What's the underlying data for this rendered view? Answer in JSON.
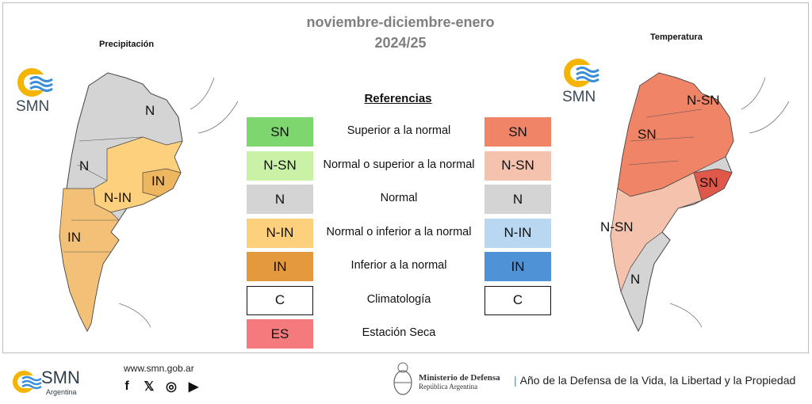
{
  "header": {
    "title_line1": "noviembre-diciembre-enero",
    "title_line2": "2024/25"
  },
  "maps": {
    "left_label": "Precipitación",
    "right_label": "Temperatura",
    "left_regions": [
      {
        "label": "N"
      },
      {
        "label": "N"
      },
      {
        "label": "N-IN"
      },
      {
        "label": "IN"
      },
      {
        "label": "IN"
      }
    ],
    "right_regions": [
      {
        "label": "N-SN"
      },
      {
        "label": "SN"
      },
      {
        "label": "SN"
      },
      {
        "label": "N-SN"
      },
      {
        "label": "N"
      }
    ]
  },
  "logo_text": "SMN",
  "legend": {
    "heading": "Referencias",
    "rows": [
      {
        "left_code": "SN",
        "left_color": "#7ed66e",
        "desc": "Superior a la normal",
        "right_code": "SN",
        "right_color": "#ef8467"
      },
      {
        "left_code": "N-SN",
        "left_color": "#c9f2a6",
        "desc": "Normal o superior a la normal",
        "right_code": "N-SN",
        "right_color": "#f5c2ae"
      },
      {
        "left_code": "N",
        "left_color": "#d4d4d4",
        "desc": "Normal",
        "right_code": "N",
        "right_color": "#d4d4d4"
      },
      {
        "left_code": "N-IN",
        "left_color": "#fdd07e",
        "desc": "Normal o inferior a la normal",
        "right_code": "N-IN",
        "right_color": "#b9d7f0"
      },
      {
        "left_code": "IN",
        "left_color": "#e49a3c",
        "desc": "Inferior a la normal",
        "right_code": "IN",
        "right_color": "#4f93d6"
      },
      {
        "left_code": "C",
        "left_color": "#ffffff",
        "desc": "Climatología",
        "right_code": "C",
        "right_color": "#ffffff"
      },
      {
        "left_code": "ES",
        "left_color": "#f57a7e",
        "desc": "Estación Seca",
        "right_code": "",
        "right_color": ""
      }
    ]
  },
  "footer": {
    "brand": "SMN",
    "brand_sub": "Argentina",
    "url": "www.smn.gob.ar",
    "social": [
      "f",
      "𝕏",
      "◎",
      "▶"
    ],
    "ministry": "Ministerio de Defensa",
    "ministry_sub": "República Argentina",
    "year_motto": "Año de la Defensa de la Vida, la Libertad y la Propiedad"
  }
}
